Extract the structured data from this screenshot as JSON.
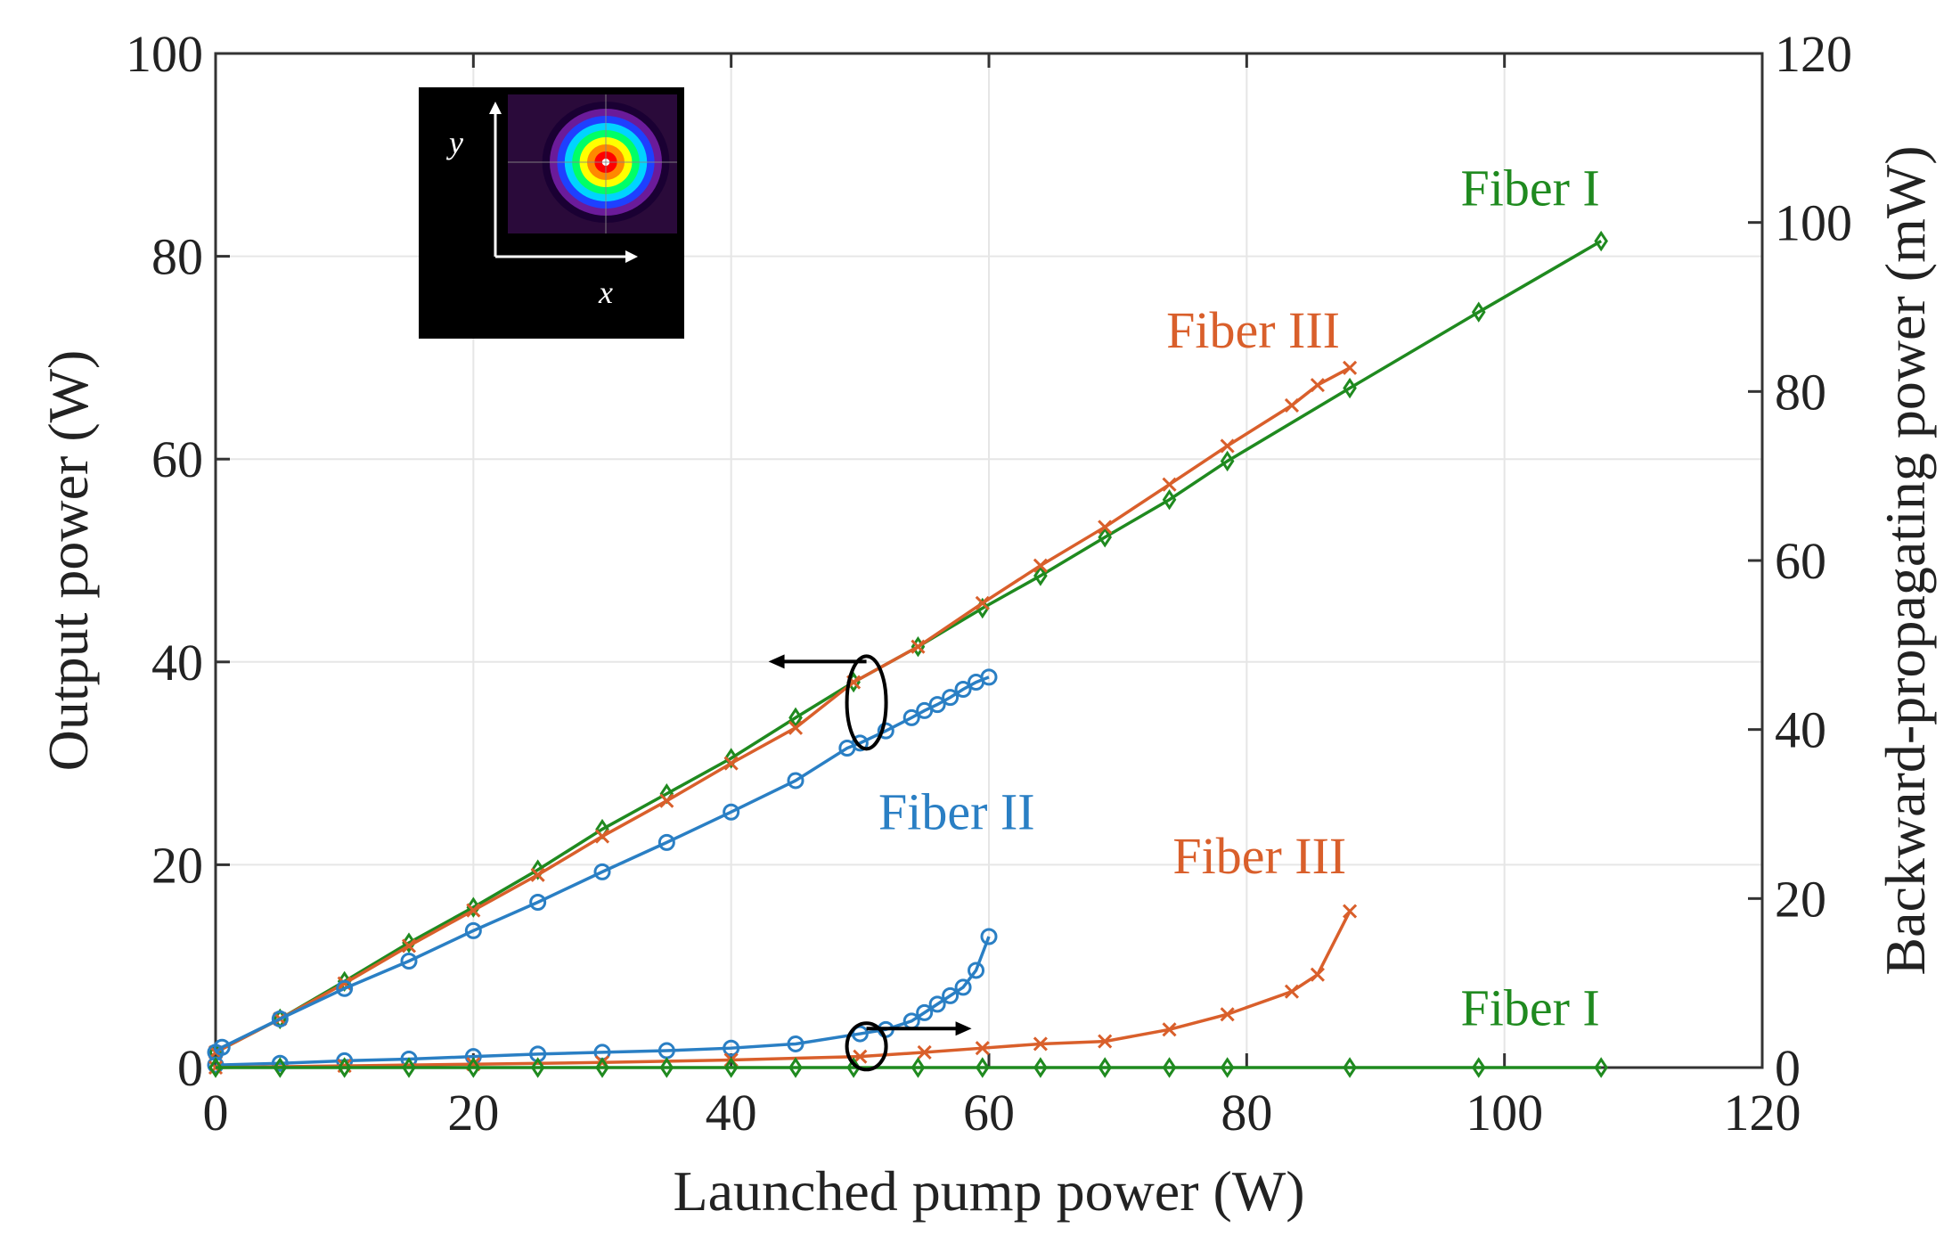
{
  "chart_data": {
    "type": "line",
    "xlabel": "Launched pump power (W)",
    "ylabel_left": "Output power (W)",
    "ylabel_right": "Backward-propagating power (mW)",
    "xlim": [
      0,
      120
    ],
    "ylim_left": [
      0,
      100
    ],
    "ylim_right": [
      0,
      120
    ],
    "x_ticks": [
      0,
      20,
      40,
      60,
      80,
      100,
      120
    ],
    "y_left_ticks": [
      0,
      20,
      40,
      60,
      80,
      100
    ],
    "y_right_ticks": [
      0,
      20,
      40,
      60,
      80,
      100,
      120
    ],
    "grid": true,
    "series": [
      {
        "name": "Fiber I",
        "axis": "left",
        "color": "#1f8a1f",
        "marker": "diamond",
        "x": [
          0,
          5,
          10,
          15,
          20,
          25,
          30,
          35,
          40,
          45,
          49.5,
          54.5,
          59.5,
          64,
          69,
          74,
          78.5,
          88,
          98,
          107.5
        ],
        "y": [
          1.5,
          4.8,
          8.5,
          12.3,
          15.8,
          19.5,
          23.5,
          27.0,
          30.5,
          34.5,
          38.0,
          41.5,
          45.3,
          48.5,
          52.3,
          56.0,
          59.8,
          67.0,
          74.5,
          81.5
        ]
      },
      {
        "name": "Fiber III",
        "axis": "left",
        "color": "#d95f2b",
        "marker": "x",
        "x": [
          0,
          5,
          10,
          15,
          20,
          25,
          30,
          35,
          40,
          45,
          49.5,
          54.5,
          59.5,
          64,
          69,
          74,
          78.5,
          83.5,
          85.5,
          88
        ],
        "y": [
          1.5,
          4.8,
          8.3,
          12.0,
          15.5,
          19.0,
          22.8,
          26.3,
          30.0,
          33.5,
          38.0,
          41.5,
          45.8,
          49.5,
          53.3,
          57.5,
          61.3,
          65.3,
          67.3,
          69.0
        ]
      },
      {
        "name": "Fiber II",
        "axis": "left",
        "color": "#2a7fc4",
        "marker": "circle",
        "x": [
          0,
          0.5,
          5,
          10,
          15,
          20,
          25,
          30,
          35,
          40,
          45,
          49,
          50,
          52,
          54,
          55,
          56,
          57,
          58,
          59,
          60
        ],
        "y": [
          1.5,
          2.0,
          4.8,
          7.8,
          10.5,
          13.5,
          16.3,
          19.3,
          22.2,
          25.2,
          28.3,
          31.5,
          32.0,
          33.2,
          34.5,
          35.2,
          35.8,
          36.5,
          37.3,
          38.0,
          38.5
        ]
      },
      {
        "name": "Fiber II",
        "axis": "right",
        "color": "#2a7fc4",
        "marker": "circle",
        "x": [
          0,
          5,
          10,
          15,
          20,
          25,
          30,
          35,
          40,
          45,
          50,
          52,
          54,
          55,
          56,
          57,
          58,
          59,
          60
        ],
        "y": [
          0.3,
          0.5,
          0.8,
          1.0,
          1.3,
          1.6,
          1.8,
          2.0,
          2.3,
          2.8,
          4.0,
          4.5,
          5.5,
          6.5,
          7.5,
          8.5,
          9.5,
          11.5,
          15.5
        ]
      },
      {
        "name": "Fiber III",
        "axis": "right",
        "color": "#d95f2b",
        "marker": "x",
        "x": [
          0,
          10,
          20,
          30,
          40,
          50,
          55,
          59.5,
          64,
          69,
          74,
          78.5,
          83.5,
          85.5,
          88
        ],
        "y": [
          0.0,
          0.2,
          0.4,
          0.6,
          0.9,
          1.3,
          1.8,
          2.3,
          2.8,
          3.1,
          4.5,
          6.3,
          9.0,
          11.0,
          18.5
        ]
      },
      {
        "name": "Fiber I",
        "axis": "right",
        "color": "#1f8a1f",
        "marker": "diamond",
        "x": [
          0,
          5,
          10,
          15,
          20,
          25,
          30,
          35,
          40,
          45,
          49.5,
          54.5,
          59.5,
          64,
          69,
          74,
          78.5,
          88,
          98,
          107.5
        ],
        "y": [
          0.0,
          0.0,
          0.0,
          0.0,
          0.0,
          0.0,
          0.0,
          0.0,
          0.0,
          0.0,
          0.0,
          0.0,
          0.0,
          0.0,
          0.0,
          0.0,
          0.0,
          0.0,
          0.0,
          0.0
        ]
      }
    ],
    "annotations": [
      {
        "text": "Fiber I",
        "color": "#1f8a1f",
        "x": 102,
        "y": 85,
        "axis": "left"
      },
      {
        "text": "Fiber III",
        "color": "#d95f2b",
        "x": 80.5,
        "y": 71,
        "axis": "left"
      },
      {
        "text": "Fiber II",
        "color": "#2a7fc4",
        "x": 57.5,
        "y": 23.5,
        "axis": "left"
      },
      {
        "text": "Fiber III",
        "color": "#d95f2b",
        "x": 81,
        "y": 23,
        "axis": "right"
      },
      {
        "text": "Fiber I",
        "color": "#1f8a1f",
        "x": 102,
        "y": 5,
        "axis": "right"
      }
    ],
    "axis_indicators": [
      {
        "points_to": "left",
        "x": 50.5,
        "y": 36.0,
        "axis": "left"
      },
      {
        "points_to": "right",
        "x": 50.5,
        "y": 2.5,
        "axis": "right"
      }
    ],
    "inset": {
      "x_label": "x",
      "y_label": "y",
      "description_colors": [
        "#1a0033",
        "#6b1b9a",
        "#1e40ff",
        "#00d4ff",
        "#00ff66",
        "#ffff00",
        "#ff8800",
        "#ff0000",
        "#ffffff"
      ]
    }
  }
}
